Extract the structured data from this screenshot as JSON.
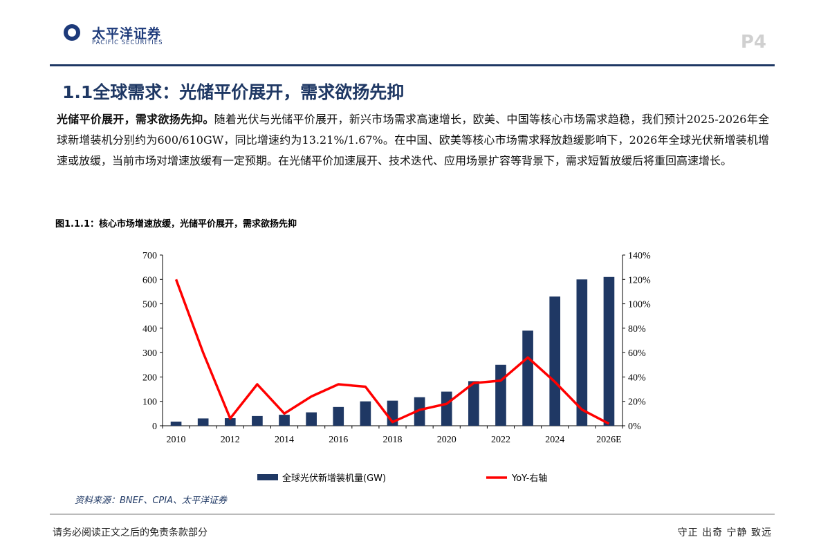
{
  "header": {
    "logo_cn": "太平洋证券",
    "logo_en": "PACIFIC SECURITIES",
    "page": "P4"
  },
  "title": "1.1全球需求：光储平价展开，需求欲扬先抑",
  "paragraph": {
    "lead": "光储平价展开，需求欲扬先抑。",
    "body": "随着光伏与光储平价展开，新兴市场需求高速增长，欧美、中国等核心市场需求趋稳，我们预计2025-2026年全球新增装机分别约为600/610GW，同比增速约为13.21%/1.67%。在中国、欧美等核心市场需求释放趋缓影响下，2026年全球光伏新增装机增速或放缓，当前市场对增速放缓有一定预期。在光储平价加速展开、技术迭代、应用场景扩容等背景下，需求短暂放缓后将重回高速增长。"
  },
  "figure_caption": "图1.1.1：核心市场增速放缓，光储平价展开，需求欲扬先抑",
  "source": "资料来源：BNEF、CPIA、太平洋证券",
  "footer": {
    "left": "请务必阅读正文之后的免责条款部分",
    "right": "守正 出奇 宁静 致远"
  },
  "chart_data": {
    "type": "bar+line",
    "categories": [
      "2010",
      "2011",
      "2012",
      "2013",
      "2014",
      "2015",
      "2016",
      "2017",
      "2018",
      "2019",
      "2020",
      "2021",
      "2022",
      "2023",
      "2024",
      "2025",
      "2026E"
    ],
    "x_tick_labels": [
      "2010",
      "2012",
      "2014",
      "2016",
      "2018",
      "2020",
      "2022",
      "2024",
      "2026E"
    ],
    "series": [
      {
        "name": "全球光伏新增装机量(GW)",
        "type": "bar",
        "axis": "left",
        "color": "#1f3864",
        "values": [
          17,
          30,
          31,
          40,
          45,
          55,
          77,
          100,
          103,
          117,
          140,
          183,
          250,
          390,
          530,
          600,
          610
        ]
      },
      {
        "name": "YoY-右轴",
        "type": "line",
        "axis": "right",
        "color": "#ff0000",
        "values": [
          120,
          60,
          6,
          34,
          10,
          24,
          34,
          32,
          3,
          13,
          18,
          35,
          37,
          56,
          36,
          13.21,
          1.67
        ]
      }
    ],
    "left_axis": {
      "ylim": [
        0,
        700
      ],
      "ticks": [
        "0",
        "100",
        "200",
        "300",
        "400",
        "500",
        "600",
        "700"
      ]
    },
    "right_axis": {
      "ylim": [
        0,
        140
      ],
      "ticks": [
        "0%",
        "20%",
        "40%",
        "60%",
        "80%",
        "100%",
        "120%",
        "140%"
      ]
    },
    "legend_placement": "bottom"
  }
}
